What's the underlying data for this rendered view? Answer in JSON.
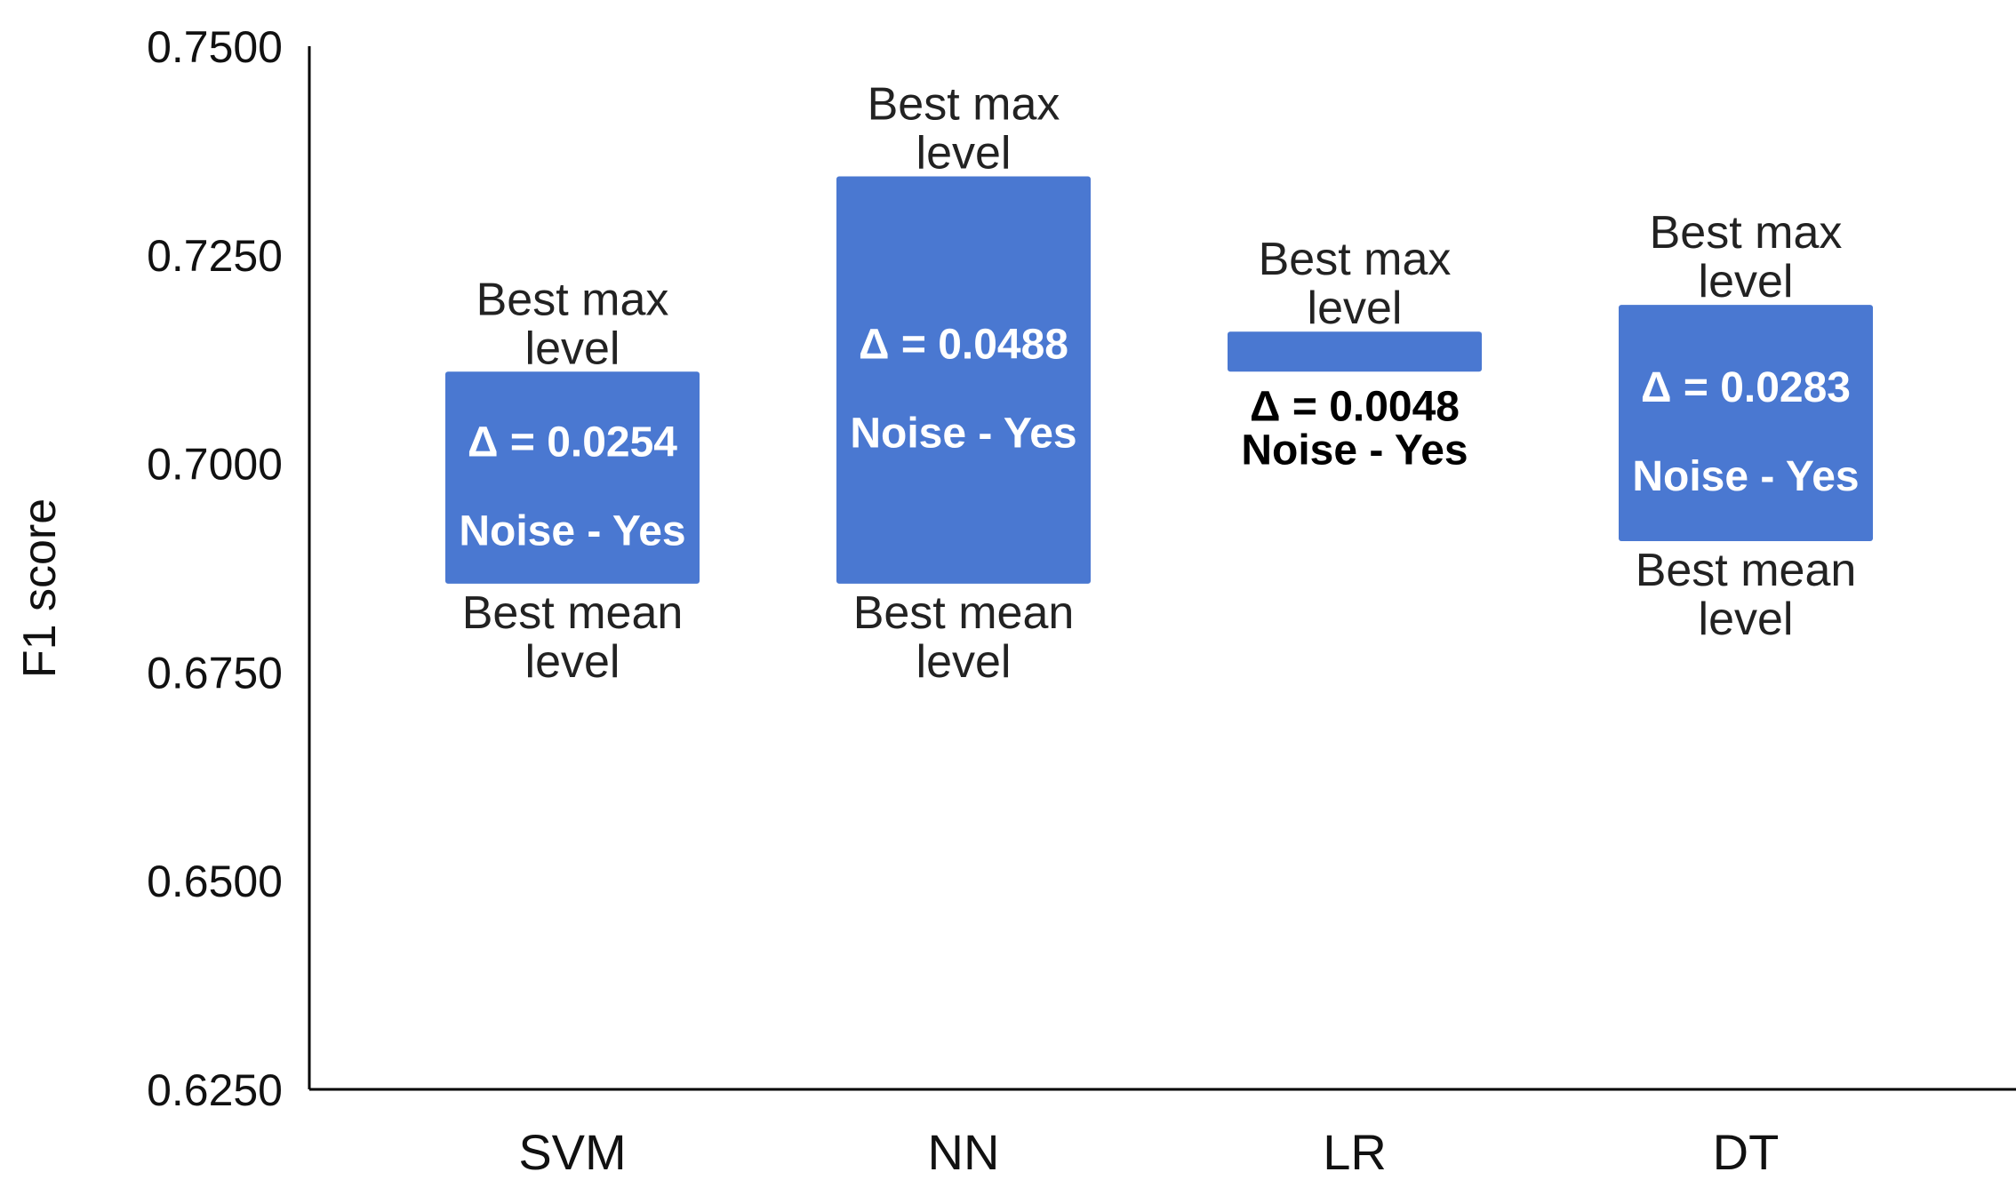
{
  "chart_data": {
    "type": "bar",
    "subtype": "floating-range",
    "ylabel": "F1 score",
    "xlabel": "",
    "ylim": [
      0.625,
      0.75
    ],
    "yticks": [
      "0.7500",
      "0.7250",
      "0.7000",
      "0.6750",
      "0.6500",
      "0.6250"
    ],
    "ytick_values": [
      0.75,
      0.725,
      0.7,
      0.675,
      0.65,
      0.625
    ],
    "categories": [
      "SVM",
      "NN",
      "LR",
      "DT"
    ],
    "series": [
      {
        "low": 0.6856,
        "high": 0.711
      },
      {
        "low": 0.6856,
        "high": 0.7344
      },
      {
        "low": 0.711,
        "high": 0.7158
      },
      {
        "low": 0.6907,
        "high": 0.719
      }
    ],
    "bar_color": "#4a78d1",
    "annotations": [
      {
        "top_line1": "Best max",
        "top_line2": "level",
        "delta": "Δ = 0.0254",
        "noise": "Noise - Yes",
        "bottom_line1": "Best mean",
        "bottom_line2": "level",
        "label_inside": true
      },
      {
        "top_line1": "Best max",
        "top_line2": "level",
        "delta": "Δ = 0.0488",
        "noise": "Noise - Yes",
        "bottom_line1": "Best mean",
        "bottom_line2": "level",
        "label_inside": true
      },
      {
        "top_line1": "Best max",
        "top_line2": "level",
        "delta": "Δ = 0.0048",
        "noise": "Noise - Yes",
        "bottom_line1": "",
        "bottom_line2": "",
        "label_inside": false
      },
      {
        "top_line1": "Best max",
        "top_line2": "level",
        "delta": "Δ = 0.0283",
        "noise": "Noise - Yes",
        "bottom_line1": "Best mean",
        "bottom_line2": "level",
        "label_inside": true
      }
    ]
  }
}
